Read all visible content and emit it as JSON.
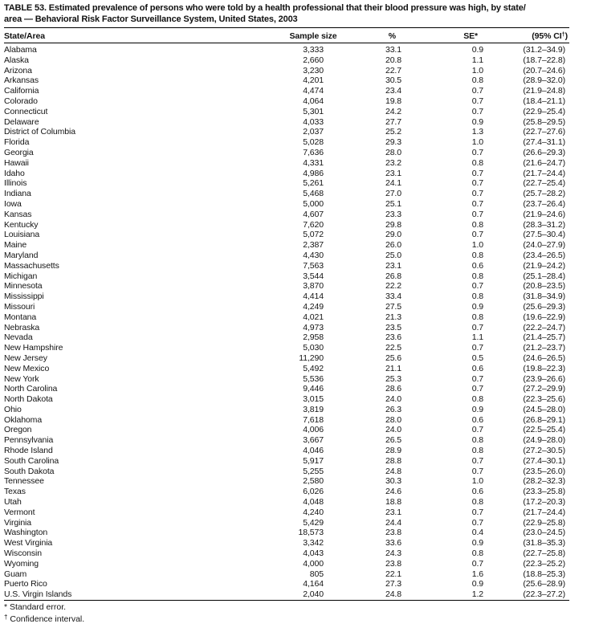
{
  "title": {
    "line1": "TABLE 53. Estimated prevalence of persons who were told by a health professional that their blood pressure was high, by state/",
    "line2": "area — Behavioral Risk Factor Surveillance System, United States, 2003"
  },
  "table": {
    "headers": {
      "state_area": "State/Area",
      "sample_size": "Sample size",
      "percent": "%",
      "se": "SE*",
      "ci_pre": "(95% CI",
      "ci_sup": "†",
      "ci_post": ")"
    },
    "rows": [
      {
        "area": "Alabama",
        "sample_size": "3,333",
        "percent": "33.1",
        "se": "0.9",
        "ci": "(31.2–34.9)"
      },
      {
        "area": "Alaska",
        "sample_size": "2,660",
        "percent": "20.8",
        "se": "1.1",
        "ci": "(18.7–22.8)"
      },
      {
        "area": "Arizona",
        "sample_size": "3,230",
        "percent": "22.7",
        "se": "1.0",
        "ci": "(20.7–24.6)"
      },
      {
        "area": "Arkansas",
        "sample_size": "4,201",
        "percent": "30.5",
        "se": "0.8",
        "ci": "(28.9–32.0)"
      },
      {
        "area": "California",
        "sample_size": "4,474",
        "percent": "23.4",
        "se": "0.7",
        "ci": "(21.9–24.8)"
      },
      {
        "area": "Colorado",
        "sample_size": "4,064",
        "percent": "19.8",
        "se": "0.7",
        "ci": "(18.4–21.1)"
      },
      {
        "area": "Connecticut",
        "sample_size": "5,301",
        "percent": "24.2",
        "se": "0.7",
        "ci": "(22.9–25.4)"
      },
      {
        "area": "Delaware",
        "sample_size": "4,033",
        "percent": "27.7",
        "se": "0.9",
        "ci": "(25.8–29.5)"
      },
      {
        "area": "District of Columbia",
        "sample_size": "2,037",
        "percent": "25.2",
        "se": "1.3",
        "ci": "(22.7–27.6)"
      },
      {
        "area": "Florida",
        "sample_size": "5,028",
        "percent": "29.3",
        "se": "1.0",
        "ci": "(27.4–31.1)"
      },
      {
        "area": "Georgia",
        "sample_size": "7,636",
        "percent": "28.0",
        "se": "0.7",
        "ci": "(26.6–29.3)"
      },
      {
        "area": "Hawaii",
        "sample_size": "4,331",
        "percent": "23.2",
        "se": "0.8",
        "ci": "(21.6–24.7)"
      },
      {
        "area": "Idaho",
        "sample_size": "4,986",
        "percent": "23.1",
        "se": "0.7",
        "ci": "(21.7–24.4)"
      },
      {
        "area": "Illinois",
        "sample_size": "5,261",
        "percent": "24.1",
        "se": "0.7",
        "ci": "(22.7–25.4)"
      },
      {
        "area": "Indiana",
        "sample_size": "5,468",
        "percent": "27.0",
        "se": "0.7",
        "ci": "(25.7–28.2)"
      },
      {
        "area": "Iowa",
        "sample_size": "5,000",
        "percent": "25.1",
        "se": "0.7",
        "ci": "(23.7–26.4)"
      },
      {
        "area": "Kansas",
        "sample_size": "4,607",
        "percent": "23.3",
        "se": "0.7",
        "ci": "(21.9–24.6)"
      },
      {
        "area": "Kentucky",
        "sample_size": "7,620",
        "percent": "29.8",
        "se": "0.8",
        "ci": "(28.3–31.2)"
      },
      {
        "area": "Louisiana",
        "sample_size": "5,072",
        "percent": "29.0",
        "se": "0.7",
        "ci": "(27.5–30.4)"
      },
      {
        "area": "Maine",
        "sample_size": "2,387",
        "percent": "26.0",
        "se": "1.0",
        "ci": "(24.0–27.9)"
      },
      {
        "area": "Maryland",
        "sample_size": "4,430",
        "percent": "25.0",
        "se": "0.8",
        "ci": "(23.4–26.5)"
      },
      {
        "area": "Massachusetts",
        "sample_size": "7,563",
        "percent": "23.1",
        "se": "0.6",
        "ci": "(21.9–24.2)"
      },
      {
        "area": "Michigan",
        "sample_size": "3,544",
        "percent": "26.8",
        "se": "0.8",
        "ci": "(25.1–28.4)"
      },
      {
        "area": "Minnesota",
        "sample_size": "3,870",
        "percent": "22.2",
        "se": "0.7",
        "ci": "(20.8–23.5)"
      },
      {
        "area": "Mississippi",
        "sample_size": "4,414",
        "percent": "33.4",
        "se": "0.8",
        "ci": "(31.8–34.9)"
      },
      {
        "area": "Missouri",
        "sample_size": "4,249",
        "percent": "27.5",
        "se": "0.9",
        "ci": "(25.6–29.3)"
      },
      {
        "area": "Montana",
        "sample_size": "4,021",
        "percent": "21.3",
        "se": "0.8",
        "ci": "(19.6–22.9)"
      },
      {
        "area": "Nebraska",
        "sample_size": "4,973",
        "percent": "23.5",
        "se": "0.7",
        "ci": "(22.2–24.7)"
      },
      {
        "area": "Nevada",
        "sample_size": "2,958",
        "percent": "23.6",
        "se": "1.1",
        "ci": "(21.4–25.7)"
      },
      {
        "area": "New Hampshire",
        "sample_size": "5,030",
        "percent": "22.5",
        "se": "0.7",
        "ci": "(21.2–23.7)"
      },
      {
        "area": "New Jersey",
        "sample_size": "11,290",
        "percent": "25.6",
        "se": "0.5",
        "ci": "(24.6–26.5)"
      },
      {
        "area": "New Mexico",
        "sample_size": "5,492",
        "percent": "21.1",
        "se": "0.6",
        "ci": "(19.8–22.3)"
      },
      {
        "area": "New York",
        "sample_size": "5,536",
        "percent": "25.3",
        "se": "0.7",
        "ci": "(23.9–26.6)"
      },
      {
        "area": "North Carolina",
        "sample_size": "9,446",
        "percent": "28.6",
        "se": "0.7",
        "ci": "(27.2–29.9)"
      },
      {
        "area": "North Dakota",
        "sample_size": "3,015",
        "percent": "24.0",
        "se": "0.8",
        "ci": "(22.3–25.6)"
      },
      {
        "area": "Ohio",
        "sample_size": "3,819",
        "percent": "26.3",
        "se": "0.9",
        "ci": "(24.5–28.0)"
      },
      {
        "area": "Oklahoma",
        "sample_size": "7,618",
        "percent": "28.0",
        "se": "0.6",
        "ci": "(26.8–29.1)"
      },
      {
        "area": "Oregon",
        "sample_size": "4,006",
        "percent": "24.0",
        "se": "0.7",
        "ci": "(22.5–25.4)"
      },
      {
        "area": "Pennsylvania",
        "sample_size": "3,667",
        "percent": "26.5",
        "se": "0.8",
        "ci": "(24.9–28.0)"
      },
      {
        "area": "Rhode Island",
        "sample_size": "4,046",
        "percent": "28.9",
        "se": "0.8",
        "ci": "(27.2–30.5)"
      },
      {
        "area": "South Carolina",
        "sample_size": "5,917",
        "percent": "28.8",
        "se": "0.7",
        "ci": "(27.4–30.1)"
      },
      {
        "area": "South Dakota",
        "sample_size": "5,255",
        "percent": "24.8",
        "se": "0.7",
        "ci": "(23.5–26.0)"
      },
      {
        "area": "Tennessee",
        "sample_size": "2,580",
        "percent": "30.3",
        "se": "1.0",
        "ci": "(28.2–32.3)"
      },
      {
        "area": "Texas",
        "sample_size": "6,026",
        "percent": "24.6",
        "se": "0.6",
        "ci": "(23.3–25.8)"
      },
      {
        "area": "Utah",
        "sample_size": "4,048",
        "percent": "18.8",
        "se": "0.8",
        "ci": "(17.2–20.3)"
      },
      {
        "area": "Vermont",
        "sample_size": "4,240",
        "percent": "23.1",
        "se": "0.7",
        "ci": "(21.7–24.4)"
      },
      {
        "area": "Virginia",
        "sample_size": "5,429",
        "percent": "24.4",
        "se": "0.7",
        "ci": "(22.9–25.8)"
      },
      {
        "area": "Washington",
        "sample_size": "18,573",
        "percent": "23.8",
        "se": "0.4",
        "ci": "(23.0–24.5)"
      },
      {
        "area": "West Virginia",
        "sample_size": "3,342",
        "percent": "33.6",
        "se": "0.9",
        "ci": "(31.8–35.3)"
      },
      {
        "area": "Wisconsin",
        "sample_size": "4,043",
        "percent": "24.3",
        "se": "0.8",
        "ci": "(22.7–25.8)"
      },
      {
        "area": "Wyoming",
        "sample_size": "4,000",
        "percent": "23.8",
        "se": "0.7",
        "ci": "(22.3–25.2)"
      },
      {
        "area": "Guam",
        "sample_size": "805",
        "percent": "22.1",
        "se": "1.6",
        "ci": "(18.8–25.3)"
      },
      {
        "area": "Puerto Rico",
        "sample_size": "4,164",
        "percent": "27.3",
        "se": "0.9",
        "ci": "(25.6–28.9)"
      },
      {
        "area": "U.S. Virgin Islands",
        "sample_size": "2,040",
        "percent": "24.8",
        "se": "1.2",
        "ci": "(22.3–27.2)"
      }
    ]
  },
  "footnotes": [
    {
      "marker": "*",
      "text": "Standard error."
    },
    {
      "marker": "†",
      "text": "Confidence interval."
    }
  ],
  "colors": {
    "text": "#141414",
    "rule": "#000000",
    "background": "#ffffff"
  }
}
